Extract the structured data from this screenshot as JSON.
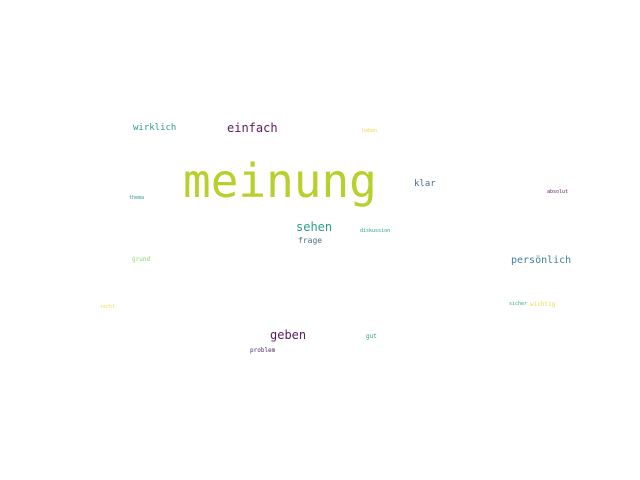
{
  "words": {
    "meinung": {
      "text": "meinung",
      "color": "#b5d22c"
    },
    "wirklich": {
      "text": "wirklich",
      "color": "#2a9d8f"
    },
    "einfach": {
      "text": "einfach",
      "color": "#5b1a5e"
    },
    "haben": {
      "text": "haben",
      "color": "#f2d84a"
    },
    "klar": {
      "text": "klar",
      "color": "#4a6d8c"
    },
    "absolut": {
      "text": "absolut",
      "color": "#5b1a5e"
    },
    "thema": {
      "text": "thema",
      "color": "#2a9d8f"
    },
    "sehen": {
      "text": "sehen",
      "color": "#2a9d8f"
    },
    "diskussion": {
      "text": "diskussion",
      "color": "#2a9d8f"
    },
    "frage": {
      "text": "frage",
      "color": "#4a6d8c"
    },
    "grund": {
      "text": "grund",
      "color": "#8fd16a"
    },
    "persoenlich": {
      "text": "persönlich",
      "color": "#3f7fa0"
    },
    "sicher": {
      "text": "sicher",
      "color": "#2bb07f"
    },
    "wichtig": {
      "text": "wichtig",
      "color": "#f2d84a"
    },
    "recht": {
      "text": "recht",
      "color": "#f2d84a"
    },
    "geben": {
      "text": "geben",
      "color": "#5b1a5e"
    },
    "gut": {
      "text": "gut",
      "color": "#2a9d8f"
    },
    "problem": {
      "text": "problem",
      "color": "#4b2a6e"
    }
  }
}
